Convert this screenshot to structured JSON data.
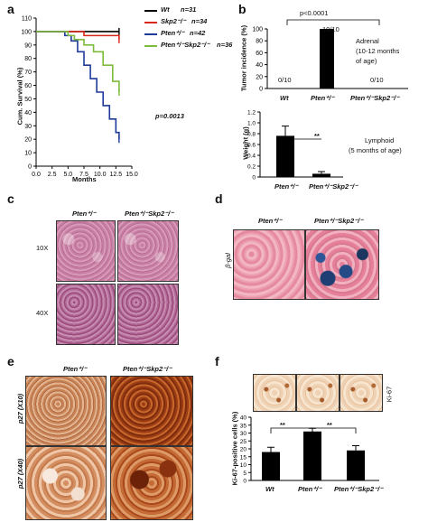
{
  "panels": {
    "a": "a",
    "b": "b",
    "c": "c",
    "d": "d",
    "e": "e",
    "f": "f"
  },
  "panel_a": {
    "ylabel": "Cum. Survival (%)",
    "xlabel": "Months",
    "yticks": [
      "0",
      "10",
      "20",
      "30",
      "40",
      "50",
      "60",
      "70",
      "80",
      "90",
      "100",
      "110"
    ],
    "xticks": [
      "0.0",
      "2.5",
      "5.0",
      "7.5",
      "10.0",
      "12.5",
      "15.0"
    ],
    "pvalue": "p=0.0013",
    "legend": [
      {
        "label": "Wt",
        "n": "n=31",
        "color": "#000000"
      },
      {
        "label": "Skp2⁻/⁻",
        "n": "n=34",
        "color": "#d9281b"
      },
      {
        "label": "Pten⁺/⁻",
        "n": "n=42",
        "color": "#1e3a9a"
      },
      {
        "label": "Pten⁺/⁻Skp2⁻/⁻",
        "n": "n=36",
        "color": "#7dbb3c"
      }
    ]
  },
  "panel_b": {
    "top_ylabel": "Tumor incidence (%)",
    "pvalue": "p<0.0001",
    "counts": [
      "0/10",
      "10/10",
      "0/10"
    ],
    "categories": [
      "Wt",
      "Pten⁺/⁻",
      "Pten⁺/⁻Skp2⁻/⁻"
    ],
    "note_line1": "Adrenal",
    "note_line2": "(10-12 months",
    "note_line3": "of age)",
    "top_yticks": [
      "0",
      "20",
      "40",
      "60",
      "80",
      "100"
    ],
    "bottom_ylabel": "Weight (g)",
    "bottom_yticks": [
      "0",
      "0.2",
      "0.4",
      "0.6",
      "0.8",
      "1.0",
      "1.2"
    ],
    "bottom_categories": [
      "Pten⁺/⁻",
      "Pten⁺/⁻Skp2⁻/⁻"
    ],
    "sig": "**",
    "bottom_note_line1": "Lymphoid",
    "bottom_note_line2": "(5 months of age)"
  },
  "panel_c": {
    "col1": "Pten⁺/⁻",
    "col2": "Pten⁺/⁻Skp2⁻/⁻",
    "row1": "10X",
    "row2": "40X"
  },
  "panel_d": {
    "col1": "Pten⁺/⁻",
    "col2": "Pten⁺/⁻Skp2⁻/⁻",
    "row": "β-gal"
  },
  "panel_e": {
    "col1": "Pten⁺/⁻",
    "col2": "Pten⁺/⁻Skp2⁻/⁻",
    "row1": "p27 (X10)",
    "row2": "p27 (X40)"
  },
  "panel_f": {
    "ylabel": "Ki-67-positive cells (%)",
    "stain": "Ki-67",
    "yticks": [
      "0",
      "5",
      "10",
      "15",
      "20",
      "25",
      "30",
      "35",
      "40"
    ],
    "categories": [
      "Wt",
      "Pten⁺/⁻",
      "Pten⁺/⁻Skp2⁻/⁻"
    ],
    "sig1": "**",
    "sig2": "**"
  },
  "chart_data": [
    {
      "type": "line",
      "panel": "a",
      "xlabel": "Months",
      "ylabel": "Cum. Survival (%)",
      "xlim": [
        0,
        15
      ],
      "ylim": [
        0,
        110
      ],
      "grid": false,
      "legend_position": "top-right",
      "series": [
        {
          "name": "Wt n=31",
          "color": "#000000",
          "x": [
            0,
            13
          ],
          "y": [
            100,
            100
          ]
        },
        {
          "name": "Skp2-/- n=34",
          "color": "#d9281b",
          "x": [
            0,
            7.5,
            13
          ],
          "y": [
            100,
            97,
            94
          ]
        },
        {
          "name": "Pten+/- n=42",
          "color": "#1e3a9a",
          "x": [
            0,
            4.5,
            5.5,
            6.5,
            7.5,
            8.5,
            9.5,
            10.5,
            11.5,
            12.5,
            13
          ],
          "y": [
            100,
            97,
            93,
            85,
            75,
            65,
            55,
            45,
            35,
            25,
            20
          ]
        },
        {
          "name": "Pten+/-Skp2-/- n=36",
          "color": "#7dbb3c",
          "x": [
            0,
            5,
            6,
            7.5,
            9,
            10.5,
            12,
            13
          ],
          "y": [
            100,
            97,
            94,
            90,
            85,
            75,
            63,
            55
          ]
        }
      ],
      "annotations": [
        "p=0.0013"
      ]
    },
    {
      "type": "bar",
      "panel": "b-top",
      "categories": [
        "Wt",
        "Pten+/-",
        "Pten+/-Skp2-/-"
      ],
      "values": [
        0,
        100,
        0
      ],
      "ylabel": "Tumor incidence (%)",
      "ylim": [
        0,
        100
      ],
      "annotations": [
        "0/10",
        "10/10",
        "0/10",
        "p<0.0001",
        "Adrenal (10-12 months of age)"
      ]
    },
    {
      "type": "bar",
      "panel": "b-bottom",
      "categories": [
        "Pten+/-",
        "Pten+/-Skp2-/-"
      ],
      "values": [
        0.76,
        0.06
      ],
      "errors": [
        0.18,
        0.04
      ],
      "ylabel": "Weight (g)",
      "ylim": [
        0,
        1.2
      ],
      "annotations": [
        "**",
        "Lymphoid (5 months of age)"
      ]
    },
    {
      "type": "bar",
      "panel": "f",
      "categories": [
        "Wt",
        "Pten+/-",
        "Pten+/-Skp2-/-"
      ],
      "values": [
        18,
        31,
        19
      ],
      "errors": [
        3,
        2,
        3
      ],
      "ylabel": "Ki-67-positive cells (%)",
      "ylim": [
        0,
        40
      ],
      "annotations": [
        "**",
        "**"
      ]
    }
  ]
}
